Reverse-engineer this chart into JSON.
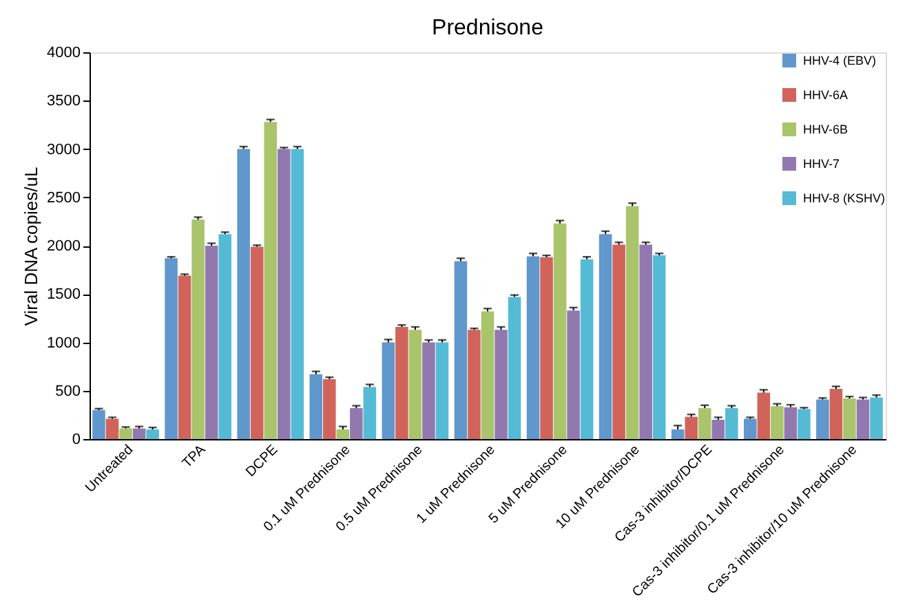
{
  "chart_data": {
    "type": "bar",
    "title": "Prednisone",
    "ylabel": "Viral DNA copies/uL",
    "categories": [
      "Untreated",
      "TPA",
      "DCPE",
      "0.1 uM Prednisone",
      "0.5 uM Prednisone",
      "1 uM Prednisone",
      "5 uM Prednisone",
      "10 uM Prednisone",
      "Cas-3 inhibitor/DCPE",
      "Cas-3 inhibitor/0.1 uM Prednisone",
      "Cas-3 inhibitor/10 uM Prednisone"
    ],
    "series": [
      {
        "name": "HHV-4 (EBV)",
        "color": "#6097cc",
        "values": [
          300,
          1870,
          3000,
          670,
          1000,
          1840,
          1890,
          2120,
          100,
          210,
          410
        ],
        "errors": [
          15,
          15,
          25,
          30,
          30,
          30,
          30,
          30,
          40,
          15,
          15
        ]
      },
      {
        "name": "HHV-6A",
        "color": "#d0645b",
        "values": [
          210,
          1690,
          1990,
          620,
          1160,
          1130,
          1880,
          2010,
          230,
          480,
          520
        ],
        "errors": [
          15,
          15,
          15,
          20,
          20,
          15,
          20,
          25,
          25,
          30,
          25
        ]
      },
      {
        "name": "HHV-6B",
        "color": "#a9c46b",
        "values": [
          110,
          2270,
          3280,
          100,
          1130,
          1320,
          2230,
          2410,
          320,
          340,
          420
        ],
        "errors": [
          15,
          25,
          25,
          30,
          30,
          30,
          30,
          30,
          30,
          25,
          20
        ]
      },
      {
        "name": "HHV-7",
        "color": "#9179b0",
        "values": [
          110,
          2000,
          3000,
          320,
          1000,
          1130,
          1330,
          2010,
          200,
          330,
          410
        ],
        "errors": [
          20,
          25,
          15,
          25,
          25,
          30,
          30,
          25,
          25,
          25,
          20
        ]
      },
      {
        "name": "HHV-8 (KSHV)",
        "color": "#55bbd5",
        "values": [
          100,
          2120,
          3000,
          540,
          1000,
          1470,
          1860,
          1900,
          320,
          310,
          430
        ],
        "errors": [
          20,
          20,
          25,
          25,
          25,
          20,
          25,
          20,
          25,
          15,
          25
        ]
      }
    ],
    "ylim": [
      0,
      4000
    ],
    "yticks": [
      0,
      500,
      1000,
      1500,
      2000,
      2500,
      3000,
      3500,
      4000
    ],
    "grid": false,
    "legend": "top right"
  }
}
